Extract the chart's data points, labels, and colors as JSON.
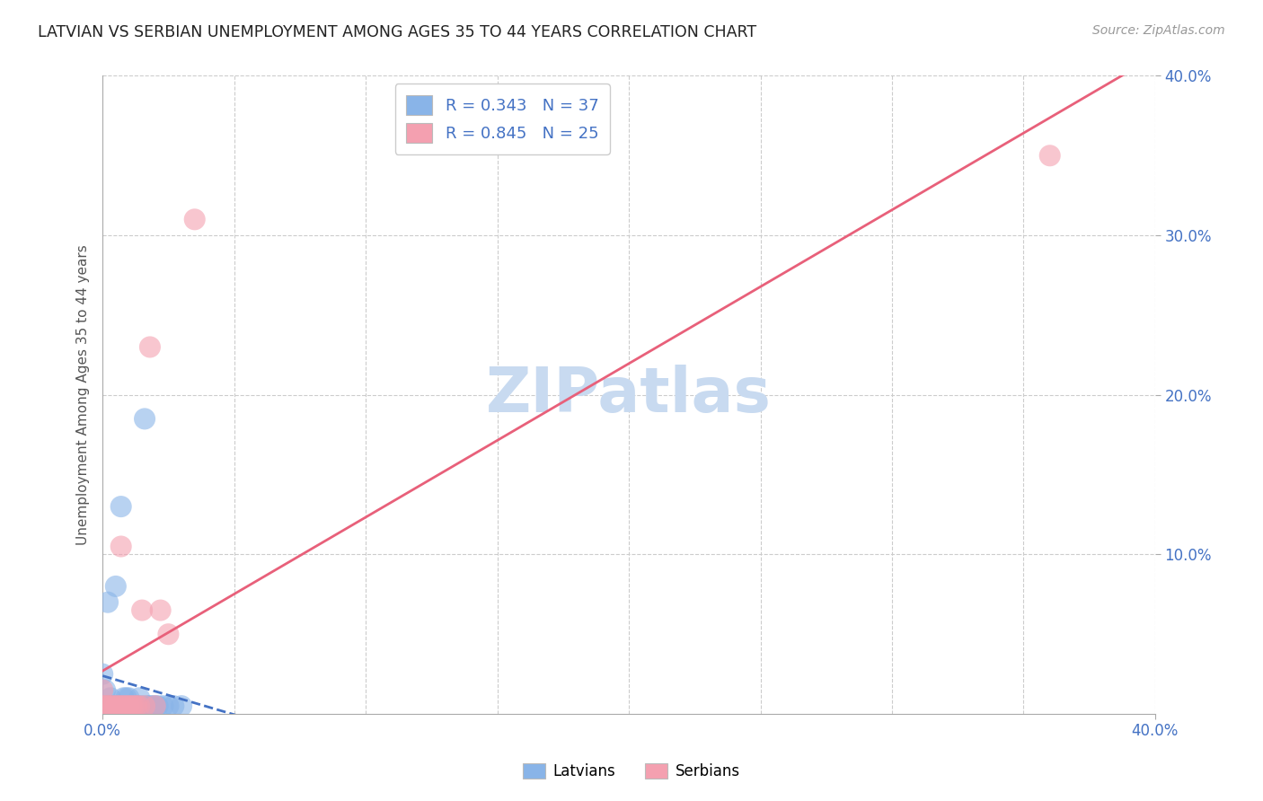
{
  "title": "LATVIAN VS SERBIAN UNEMPLOYMENT AMONG AGES 35 TO 44 YEARS CORRELATION CHART",
  "source": "Source: ZipAtlas.com",
  "ylabel": "Unemployment Among Ages 35 to 44 years",
  "xlim": [
    0.0,
    0.4
  ],
  "ylim": [
    0.0,
    0.4
  ],
  "latvian_color": "#89b4e8",
  "serbian_color": "#f4a0b0",
  "latvian_line_color": "#4472c4",
  "serbian_line_color": "#e8607a",
  "tick_label_color": "#4472c4",
  "latvian_R": 0.343,
  "latvian_N": 37,
  "serbian_R": 0.845,
  "serbian_N": 25,
  "watermark": "ZIPatlas",
  "watermark_color": "#c8daf0",
  "background_color": "#ffffff",
  "grid_color": "#cccccc",
  "latvian_x": [
    0.0,
    0.001,
    0.001,
    0.002,
    0.002,
    0.003,
    0.003,
    0.004,
    0.005,
    0.005,
    0.006,
    0.006,
    0.007,
    0.007,
    0.008,
    0.008,
    0.009,
    0.009,
    0.01,
    0.01,
    0.011,
    0.011,
    0.012,
    0.013,
    0.013,
    0.014,
    0.015,
    0.016,
    0.017,
    0.018,
    0.019,
    0.02,
    0.021,
    0.023,
    0.025,
    0.027,
    0.03
  ],
  "latvian_y": [
    0.025,
    0.005,
    0.015,
    0.005,
    0.07,
    0.005,
    0.01,
    0.005,
    0.005,
    0.08,
    0.005,
    0.005,
    0.005,
    0.13,
    0.005,
    0.01,
    0.005,
    0.01,
    0.005,
    0.01,
    0.005,
    0.005,
    0.005,
    0.005,
    0.005,
    0.01,
    0.005,
    0.185,
    0.005,
    0.005,
    0.005,
    0.005,
    0.005,
    0.005,
    0.005,
    0.005,
    0.005
  ],
  "serbian_x": [
    0.0,
    0.0,
    0.001,
    0.002,
    0.003,
    0.004,
    0.005,
    0.006,
    0.007,
    0.007,
    0.008,
    0.009,
    0.01,
    0.011,
    0.012,
    0.013,
    0.014,
    0.015,
    0.016,
    0.018,
    0.02,
    0.022,
    0.025,
    0.035,
    0.36
  ],
  "serbian_y": [
    0.005,
    0.015,
    0.005,
    0.005,
    0.005,
    0.005,
    0.005,
    0.005,
    0.005,
    0.105,
    0.005,
    0.005,
    0.005,
    0.005,
    0.005,
    0.005,
    0.005,
    0.065,
    0.005,
    0.23,
    0.005,
    0.065,
    0.05,
    0.31,
    0.35
  ],
  "ytick_positions": [
    0.1,
    0.2,
    0.3,
    0.4
  ],
  "ytick_labels": [
    "10.0%",
    "20.0%",
    "30.0%",
    "40.0%"
  ],
  "xtick_positions": [
    0.0,
    0.4
  ],
  "xtick_labels": [
    "0.0%",
    "40.0%"
  ],
  "grid_yticks": [
    0.1,
    0.2,
    0.3,
    0.4
  ],
  "grid_xticks": [
    0.05,
    0.1,
    0.15,
    0.2,
    0.25,
    0.3,
    0.35,
    0.4
  ]
}
